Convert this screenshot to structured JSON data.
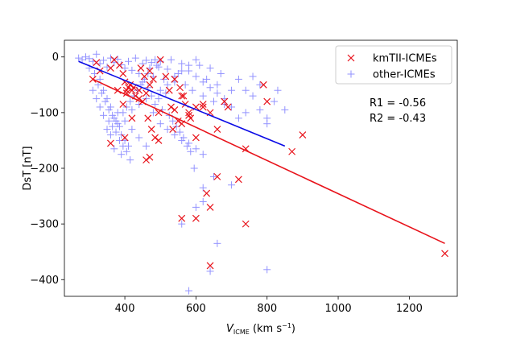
{
  "chart_data": {
    "type": "scatter",
    "xlabel": "V",
    "xlabel_sub": "ICME",
    "xlabel_units": " (km s",
    "xlabel_sup": "−1",
    "xlabel_close": ")",
    "ylabel": "DsT [nT]",
    "xlim": [
      230,
      1335
    ],
    "ylim": [
      -430,
      30
    ],
    "xticks": [
      400,
      600,
      800,
      1000,
      1200
    ],
    "yticks": [
      0,
      -100,
      -200,
      -300,
      -400
    ],
    "legend_position": "top-right",
    "annotations": [
      "R1 = -0.56",
      "R2 = -0.43"
    ],
    "colors": {
      "series1": "#e8131b",
      "series2": "#8080ff",
      "fit1": "#e8131b",
      "fit2": "#0a0ae6"
    },
    "series": [
      {
        "name": "kmTII-ICMEs",
        "marker": "x",
        "points": [
          [
            320,
            -10
          ],
          [
            310,
            -40
          ],
          [
            330,
            -25
          ],
          [
            360,
            -20
          ],
          [
            370,
            -5
          ],
          [
            385,
            -15
          ],
          [
            395,
            -30
          ],
          [
            400,
            -45
          ],
          [
            410,
            -55
          ],
          [
            420,
            -60
          ],
          [
            430,
            -70
          ],
          [
            440,
            -75
          ],
          [
            450,
            -80
          ],
          [
            460,
            -65
          ],
          [
            470,
            -50
          ],
          [
            480,
            -40
          ],
          [
            380,
            -60
          ],
          [
            395,
            -85
          ],
          [
            405,
            -65
          ],
          [
            415,
            -50
          ],
          [
            445,
            -20
          ],
          [
            455,
            -35
          ],
          [
            465,
            -110
          ],
          [
            475,
            -130
          ],
          [
            485,
            -145
          ],
          [
            495,
            -100
          ],
          [
            500,
            -5
          ],
          [
            515,
            -35
          ],
          [
            525,
            -60
          ],
          [
            530,
            -90
          ],
          [
            540,
            -95
          ],
          [
            550,
            -115
          ],
          [
            560,
            -120
          ],
          [
            540,
            -40
          ],
          [
            555,
            -55
          ],
          [
            565,
            -70
          ],
          [
            570,
            -85
          ],
          [
            580,
            -105
          ],
          [
            585,
            -110
          ],
          [
            600,
            -90
          ],
          [
            620,
            -85
          ],
          [
            640,
            -100
          ],
          [
            660,
            -130
          ],
          [
            680,
            -80
          ],
          [
            690,
            -90
          ],
          [
            740,
            -165
          ],
          [
            790,
            -50
          ],
          [
            800,
            -80
          ],
          [
            870,
            -170
          ],
          [
            900,
            -140
          ],
          [
            400,
            -145
          ],
          [
            360,
            -155
          ],
          [
            420,
            -110
          ],
          [
            440,
            -60
          ],
          [
            460,
            -185
          ],
          [
            470,
            -180
          ],
          [
            560,
            -70
          ],
          [
            580,
            -100
          ],
          [
            600,
            -145
          ],
          [
            620,
            -90
          ],
          [
            630,
            -245
          ],
          [
            640,
            -270
          ],
          [
            560,
            -290
          ],
          [
            600,
            -290
          ],
          [
            660,
            -215
          ],
          [
            720,
            -220
          ],
          [
            740,
            -300
          ],
          [
            640,
            -375
          ],
          [
            1300,
            -353
          ],
          [
            470,
            -25
          ],
          [
            535,
            -130
          ],
          [
            495,
            -150
          ],
          [
            425,
            -55
          ],
          [
            405,
            -60
          ]
        ]
      },
      {
        "name": "other-ICMEs",
        "marker": "+",
        "points": [
          [
            270,
            -2
          ],
          [
            280,
            -5
          ],
          [
            290,
            0
          ],
          [
            300,
            -3
          ],
          [
            310,
            -8
          ],
          [
            320,
            5
          ],
          [
            330,
            -12
          ],
          [
            340,
            -6
          ],
          [
            350,
            -18
          ],
          [
            360,
            -2
          ],
          [
            370,
            -10
          ],
          [
            380,
            -4
          ],
          [
            390,
            -14
          ],
          [
            400,
            -20
          ],
          [
            410,
            -8
          ],
          [
            420,
            -24
          ],
          [
            430,
            -2
          ],
          [
            440,
            -30
          ],
          [
            450,
            -12
          ],
          [
            460,
            -6
          ],
          [
            470,
            -20
          ],
          [
            480,
            -35
          ],
          [
            490,
            -15
          ],
          [
            500,
            -8
          ],
          [
            510,
            -40
          ],
          [
            520,
            -22
          ],
          [
            530,
            -5
          ],
          [
            540,
            -45
          ],
          [
            550,
            -30
          ],
          [
            560,
            -12
          ],
          [
            570,
            -50
          ],
          [
            580,
            -25
          ],
          [
            590,
            -60
          ],
          [
            600,
            -35
          ],
          [
            610,
            -15
          ],
          [
            620,
            -70
          ],
          [
            630,
            -40
          ],
          [
            640,
            -20
          ],
          [
            650,
            -80
          ],
          [
            660,
            -50
          ],
          [
            670,
            -30
          ],
          [
            680,
            -85
          ],
          [
            700,
            -60
          ],
          [
            720,
            -40
          ],
          [
            740,
            -100
          ],
          [
            760,
            -70
          ],
          [
            780,
            -50
          ],
          [
            800,
            -110
          ],
          [
            820,
            -80
          ],
          [
            850,
            -95
          ],
          [
            330,
            -40
          ],
          [
            340,
            -60
          ],
          [
            350,
            -75
          ],
          [
            360,
            -90
          ],
          [
            370,
            -110
          ],
          [
            380,
            -120
          ],
          [
            390,
            -140
          ],
          [
            400,
            -150
          ],
          [
            410,
            -160
          ],
          [
            350,
            -130
          ],
          [
            370,
            -165
          ],
          [
            390,
            -175
          ],
          [
            420,
            -130
          ],
          [
            440,
            -145
          ],
          [
            460,
            -160
          ],
          [
            480,
            -100
          ],
          [
            500,
            -120
          ],
          [
            520,
            -130
          ],
          [
            540,
            -140
          ],
          [
            560,
            -150
          ],
          [
            580,
            -155
          ],
          [
            600,
            -165
          ],
          [
            620,
            -175
          ],
          [
            450,
            -45
          ],
          [
            465,
            -55
          ],
          [
            475,
            -70
          ],
          [
            485,
            -85
          ],
          [
            495,
            -75
          ],
          [
            505,
            -95
          ],
          [
            515,
            -65
          ],
          [
            525,
            -105
          ],
          [
            535,
            -115
          ],
          [
            545,
            -125
          ],
          [
            555,
            -135
          ],
          [
            565,
            -145
          ],
          [
            575,
            -160
          ],
          [
            585,
            -170
          ],
          [
            595,
            -200
          ],
          [
            620,
            -235
          ],
          [
            640,
            -385
          ],
          [
            660,
            -335
          ],
          [
            700,
            -230
          ],
          [
            600,
            -270
          ],
          [
            800,
            -382
          ],
          [
            650,
            -215
          ],
          [
            560,
            -300
          ],
          [
            620,
            -260
          ],
          [
            580,
            -420
          ],
          [
            300,
            -20
          ],
          [
            315,
            -30
          ],
          [
            325,
            -50
          ],
          [
            335,
            -65
          ],
          [
            345,
            -80
          ],
          [
            355,
            -95
          ],
          [
            365,
            -105
          ],
          [
            375,
            -115
          ],
          [
            385,
            -125
          ],
          [
            395,
            -100
          ],
          [
            405,
            -90
          ],
          [
            415,
            -80
          ],
          [
            425,
            -70
          ],
          [
            435,
            -60
          ],
          [
            445,
            -50
          ],
          [
            455,
            -40
          ],
          [
            465,
            -30
          ],
          [
            475,
            -10
          ],
          [
            485,
            -5
          ],
          [
            495,
            -18
          ],
          [
            310,
            -60
          ],
          [
            320,
            -75
          ],
          [
            330,
            -90
          ],
          [
            340,
            -105
          ],
          [
            355,
            -115
          ],
          [
            365,
            -125
          ],
          [
            375,
            -135
          ],
          [
            385,
            -150
          ],
          [
            395,
            -160
          ],
          [
            405,
            -170
          ],
          [
            415,
            -185
          ],
          [
            360,
            -140
          ],
          [
            380,
            -100
          ],
          [
            400,
            -115
          ],
          [
            420,
            -95
          ],
          [
            440,
            -85
          ],
          [
            460,
            -75
          ],
          [
            500,
            -60
          ],
          [
            520,
            -50
          ],
          [
            540,
            -35
          ],
          [
            560,
            -25
          ],
          [
            580,
            -15
          ],
          [
            600,
            -5
          ],
          [
            620,
            -45
          ],
          [
            640,
            -55
          ],
          [
            660,
            -65
          ],
          [
            680,
            -75
          ],
          [
            700,
            -90
          ],
          [
            720,
            -110
          ],
          [
            740,
            -60
          ],
          [
            760,
            -35
          ],
          [
            780,
            -95
          ],
          [
            800,
            -120
          ],
          [
            830,
            -60
          ]
        ]
      }
    ],
    "fits": [
      {
        "series": "kmTII-ICMEs",
        "x": [
          310,
          1300
        ],
        "y": [
          -40,
          -335
        ]
      },
      {
        "series": "other-ICMEs",
        "x": [
          270,
          850
        ],
        "y": [
          -8,
          -160
        ]
      }
    ]
  }
}
